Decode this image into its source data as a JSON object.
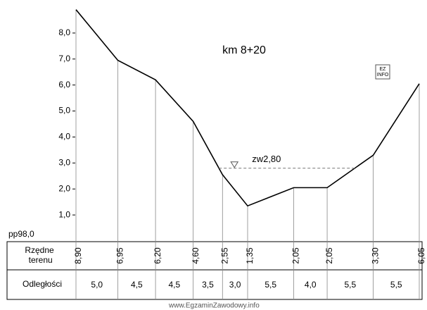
{
  "chart_data": {
    "type": "profile",
    "title": "km 8+20",
    "datum_label": "pp98,0",
    "row_labels": [
      "Rzędne terenu",
      "Odległości"
    ],
    "ordinates": [
      8.9,
      6.95,
      6.2,
      4.6,
      2.55,
      1.35,
      2.05,
      2.05,
      3.3,
      6.05
    ],
    "ordinate_labels": [
      "8,90",
      "6,95",
      "6,20",
      "4,60",
      "2,55",
      "1,35",
      "2,05",
      "2,05",
      "3,30",
      "6,05"
    ],
    "distances": [
      5,
      4.5,
      4.5,
      3.5,
      3,
      5.5,
      4,
      5.5,
      5.5
    ],
    "distance_labels": [
      "5,0",
      "4,5",
      "4,5",
      "3,5",
      "3,0",
      "5,5",
      "4,0",
      "5,5",
      "5,5"
    ],
    "water_level": {
      "value": 2.8,
      "label": "zw2,80"
    },
    "ylim": [
      0,
      9
    ],
    "yticks": [
      {
        "value": 1,
        "label": "1,0"
      },
      {
        "value": 2,
        "label": "2,0"
      },
      {
        "value": 3,
        "label": "3,0"
      },
      {
        "value": 4,
        "label": "4,0"
      },
      {
        "value": 5,
        "label": "5,0"
      },
      {
        "value": 6,
        "label": "6,0"
      },
      {
        "value": 7,
        "label": "7,0"
      },
      {
        "value": 8,
        "label": "8,0"
      }
    ],
    "footer": "www.EgzaminZawodowy.info"
  }
}
